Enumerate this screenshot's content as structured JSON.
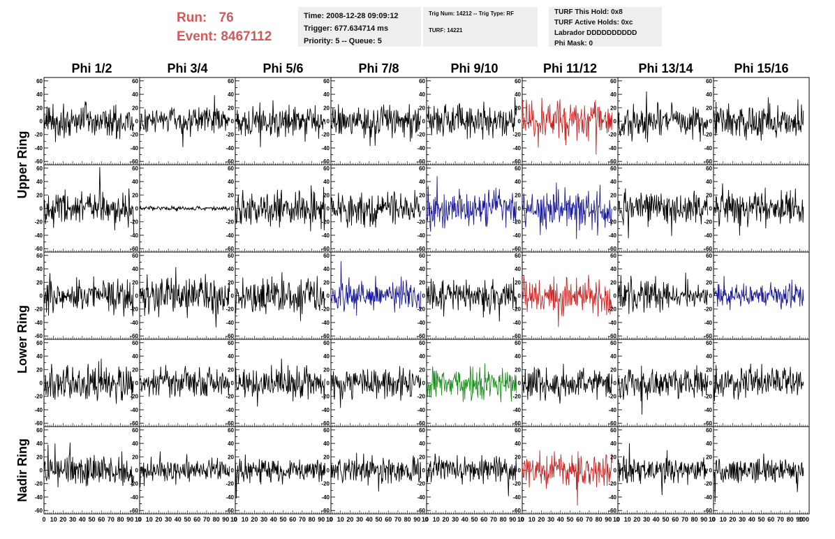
{
  "header": {
    "run_label": "Run:",
    "run_value": "76",
    "event_label": "Event:",
    "event_value": "8467112",
    "time_line": "Time: 2008-12-28 09:09:12",
    "trigger_line": "Trigger: 677.634714 ms",
    "priority_line": "Priority: 5 -- Queue: 5",
    "trig_num_line": "Trig Num: 14212 -- Trig Type: RF",
    "turf_line": "TURF: 14221",
    "turf_this_hold": "TURF This Hold: 0x8",
    "turf_active_holds": "TURF Active Holds: 0xc",
    "labrador": "Labrador DDDDDDDDDD",
    "phi_mask": "Phi Mask: 0"
  },
  "chart_data": {
    "type": "line",
    "columns": [
      "Phi 1/2",
      "Phi 3/4",
      "Phi 5/6",
      "Phi 7/8",
      "Phi 9/10",
      "Phi 11/12",
      "Phi 13/14",
      "Phi 15/16"
    ],
    "ring_labels": [
      {
        "text": "Upper Ring",
        "rows": [
          0,
          1
        ]
      },
      {
        "text": "Lower Ring",
        "rows": [
          2,
          3
        ]
      },
      {
        "text": "Nadir Ring",
        "rows": [
          4
        ]
      }
    ],
    "ylim": [
      -65,
      65
    ],
    "xlim": [
      0,
      100
    ],
    "ytick_labels": [
      "60",
      "40",
      "20",
      "0",
      "-20",
      "-40",
      "-60"
    ],
    "ytick_values": [
      60,
      40,
      20,
      0,
      -20,
      -40,
      -60
    ],
    "xtick_labels": [
      [
        "0",
        "10",
        "20",
        "30",
        "40",
        "50",
        "60",
        "70",
        "80",
        "90",
        "10"
      ],
      [
        "0",
        "10",
        "20",
        "30",
        "40",
        "50",
        "60",
        "70",
        "80",
        "90",
        "10"
      ],
      [
        "0",
        "10",
        "20",
        "30",
        "40",
        "50",
        "60",
        "70",
        "80",
        "90",
        "10"
      ],
      [
        "0",
        "10",
        "20",
        "30",
        "40",
        "50",
        "60",
        "70",
        "80",
        "90",
        "10"
      ],
      [
        "0",
        "10",
        "20",
        "30",
        "40",
        "50",
        "60",
        "70",
        "80",
        "90",
        "10"
      ],
      [
        "0",
        "10",
        "20",
        "30",
        "40",
        "50",
        "60",
        "70",
        "80",
        "90",
        "10"
      ],
      [
        "0",
        "10",
        "20",
        "30",
        "40",
        "50",
        "60",
        "70",
        "80",
        "90",
        "10"
      ],
      [
        "0",
        "10",
        "20",
        "30",
        "40",
        "50",
        "60",
        "70",
        "80",
        "90",
        "100"
      ]
    ],
    "xtick_values": [
      0,
      10,
      20,
      30,
      40,
      50,
      60,
      70,
      80,
      90,
      100
    ],
    "waveform_samples": 180,
    "waveform_x_range": [
      0,
      94
    ],
    "trace_colors": {
      "black": "#000000",
      "red": "#cc2222",
      "blue": "#1a1a99",
      "green": "#1a8c1a"
    },
    "panels": [
      [
        {
          "color": "black",
          "amplitude": 15
        },
        {
          "color": "black",
          "amplitude": 13
        },
        {
          "color": "black",
          "amplitude": 15
        },
        {
          "color": "black",
          "amplitude": 14
        },
        {
          "color": "black",
          "amplitude": 14
        },
        {
          "color": "red",
          "amplitude": 17
        },
        {
          "color": "black",
          "amplitude": 15
        },
        {
          "color": "black",
          "amplitude": 16
        }
      ],
      [
        {
          "color": "black",
          "amplitude": 15
        },
        {
          "color": "black",
          "amplitude": 2
        },
        {
          "color": "black",
          "amplitude": 15
        },
        {
          "color": "black",
          "amplitude": 14
        },
        {
          "color": "blue",
          "amplitude": 16
        },
        {
          "color": "blue",
          "amplitude": 16
        },
        {
          "color": "black",
          "amplitude": 14
        },
        {
          "color": "black",
          "amplitude": 15
        }
      ],
      [
        {
          "color": "black",
          "amplitude": 15
        },
        {
          "color": "black",
          "amplitude": 17
        },
        {
          "color": "black",
          "amplitude": 16
        },
        {
          "color": "blue",
          "amplitude": 13
        },
        {
          "color": "black",
          "amplitude": 14
        },
        {
          "color": "red",
          "amplitude": 17
        },
        {
          "color": "black",
          "amplitude": 15
        },
        {
          "color": "blue",
          "amplitude": 12
        }
      ],
      [
        {
          "color": "black",
          "amplitude": 15
        },
        {
          "color": "black",
          "amplitude": 14
        },
        {
          "color": "black",
          "amplitude": 15
        },
        {
          "color": "black",
          "amplitude": 14
        },
        {
          "color": "green",
          "amplitude": 15
        },
        {
          "color": "black",
          "amplitude": 14
        },
        {
          "color": "black",
          "amplitude": 14
        },
        {
          "color": "black",
          "amplitude": 16
        }
      ],
      [
        {
          "color": "black",
          "amplitude": 13
        },
        {
          "color": "black",
          "amplitude": 11
        },
        {
          "color": "black",
          "amplitude": 12
        },
        {
          "color": "black",
          "amplitude": 11
        },
        {
          "color": "black",
          "amplitude": 12
        },
        {
          "color": "red",
          "amplitude": 16
        },
        {
          "color": "black",
          "amplitude": 12
        },
        {
          "color": "black",
          "amplitude": 12
        }
      ]
    ],
    "grid": false,
    "legend": "none"
  }
}
